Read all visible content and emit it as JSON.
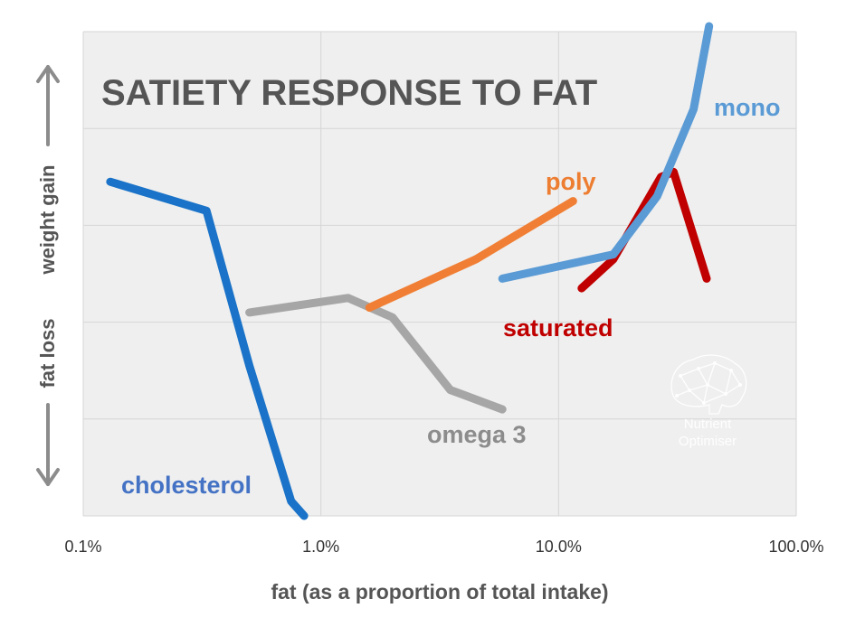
{
  "chart_data": {
    "type": "line",
    "title": "SATIETY RESPONSE TO FAT",
    "xlabel": "fat (as a proportion of total intake)",
    "ylabel_top": "weight gain",
    "ylabel_bottom": "fat loss",
    "x_scale": "log",
    "xlim": [
      0.1,
      100
    ],
    "ylim": [
      -1,
      4
    ],
    "x_ticks": [
      0.1,
      1,
      10,
      100
    ],
    "x_tick_labels": [
      "0.1%",
      "1.0%",
      "10.0%",
      "100.0%"
    ],
    "y_grid": [
      -1,
      0,
      1,
      2,
      3,
      4
    ],
    "grid": true,
    "series": [
      {
        "name": "cholesterol",
        "color": "#1a73c8",
        "points": [
          [
            0.13,
            2.45
          ],
          [
            0.33,
            2.15
          ],
          [
            0.5,
            0.55
          ],
          [
            0.75,
            -0.85
          ],
          [
            0.85,
            -1.2
          ]
        ]
      },
      {
        "name": "omega 3",
        "color": "#a6a6a6",
        "points": [
          [
            0.5,
            1.1
          ],
          [
            1.3,
            1.25
          ],
          [
            2.0,
            1.05
          ],
          [
            3.5,
            0.3
          ],
          [
            5.8,
            0.1
          ]
        ]
      },
      {
        "name": "poly",
        "color": "#f07f35",
        "points": [
          [
            1.6,
            1.15
          ],
          [
            4.5,
            1.65
          ],
          [
            11.5,
            2.25
          ]
        ]
      },
      {
        "name": "saturated",
        "color": "#c00000",
        "points": [
          [
            12.5,
            1.35
          ],
          [
            17,
            1.65
          ],
          [
            27,
            2.5
          ],
          [
            30.5,
            2.55
          ],
          [
            42,
            1.45
          ]
        ]
      },
      {
        "name": "mono",
        "color": "#5b9bd5",
        "points": [
          [
            5.8,
            1.45
          ],
          [
            17,
            1.7
          ],
          [
            26,
            2.3
          ],
          [
            37,
            3.2
          ],
          [
            43,
            4.1
          ]
        ]
      }
    ],
    "series_labels": {
      "cholesterol": "cholesterol",
      "omega3": "omega 3",
      "poly": "poly",
      "saturated": "saturated",
      "mono": "mono"
    }
  },
  "logo": {
    "name": "brain-logo",
    "line1": "Nutrient",
    "line2": "Optimiser"
  }
}
